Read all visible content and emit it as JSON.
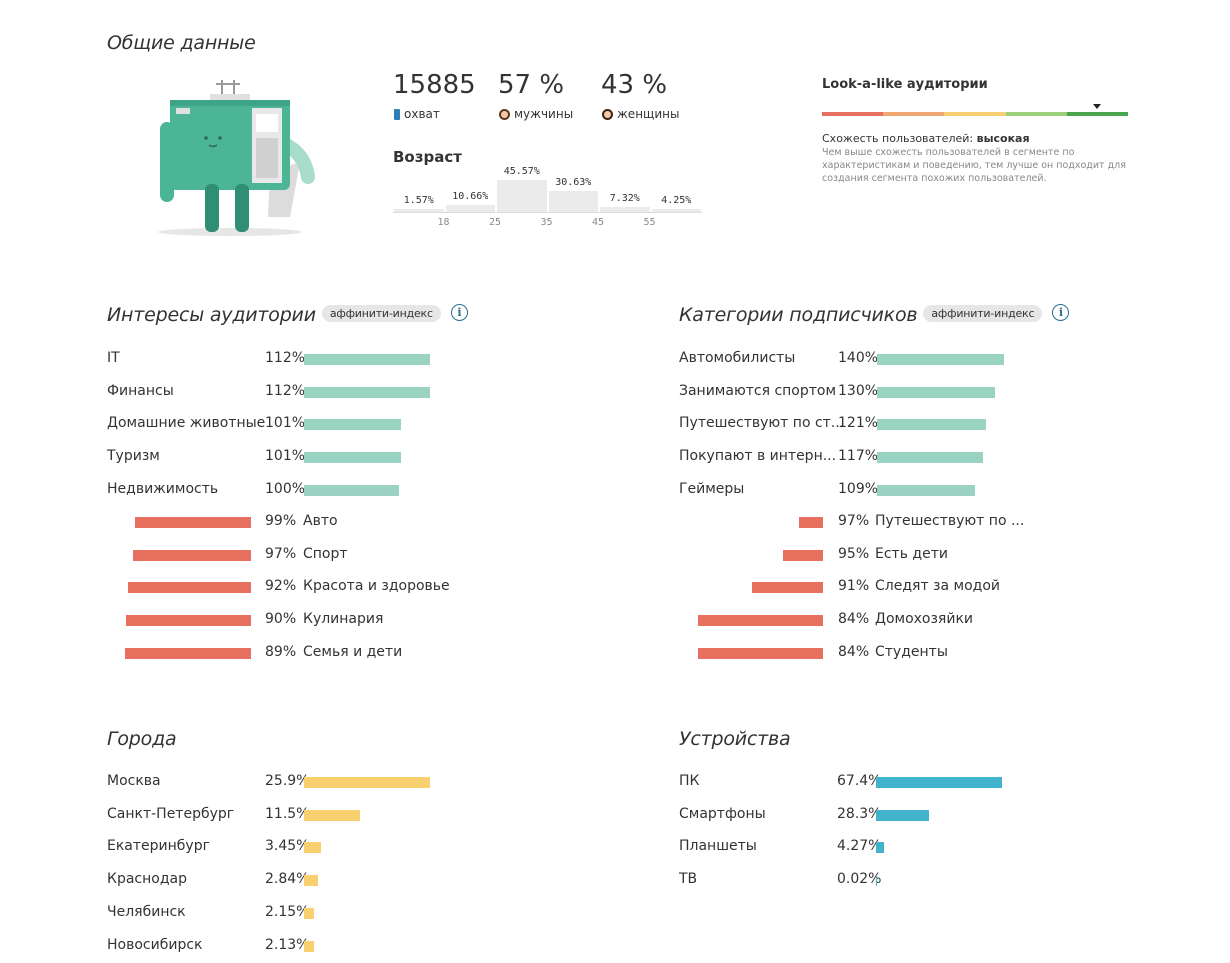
{
  "overview": {
    "title": "Общие данные",
    "reach": {
      "value": "15885",
      "label": "охват"
    },
    "men": {
      "value": "57 %",
      "label": "мужчины"
    },
    "women": {
      "value": "43 %",
      "label": "женщины"
    },
    "age": {
      "title": "Возраст",
      "groups": [
        {
          "value": "1.57%",
          "pct": 1.57
        },
        {
          "value": "10.66%",
          "pct": 10.66
        },
        {
          "value": "45.57%",
          "pct": 45.57
        },
        {
          "value": "30.63%",
          "pct": 30.63
        },
        {
          "value": "7.32%",
          "pct": 7.32
        },
        {
          "value": "4.25%",
          "pct": 4.25
        }
      ],
      "ticks": [
        "18",
        "25",
        "35",
        "45",
        "55"
      ]
    },
    "lookalike": {
      "title": "Look-a-like аудитории",
      "scale_colors": [
        "#e8705f",
        "#f0a873",
        "#f7cf74",
        "#9bcf79",
        "#4aa64e"
      ],
      "marker_position": 0.9,
      "similarity_label": "Схожесть пользователей:",
      "similarity_value": "высокая",
      "description": "Чем выше схожесть пользователей в сегменте по характеристикам и поведению, тем лучше он подходит для создания сегмента похожих пользователей."
    }
  },
  "interests": {
    "title": "Интересы аудитории",
    "badge": "аффинити-индекс",
    "top": [
      {
        "label": "IT",
        "value": "112%",
        "pct": 112
      },
      {
        "label": "Финансы",
        "value": "112%",
        "pct": 112
      },
      {
        "label": "Домашние животные",
        "value": "101%",
        "pct": 101
      },
      {
        "label": "Туризм",
        "value": "101%",
        "pct": 101
      },
      {
        "label": "Недвижимость",
        "value": "100%",
        "pct": 100
      }
    ],
    "bottom": [
      {
        "label": "Авто",
        "value": "99%",
        "pct": 99
      },
      {
        "label": "Спорт",
        "value": "97%",
        "pct": 97
      },
      {
        "label": "Красота и здоровье",
        "value": "92%",
        "pct": 92
      },
      {
        "label": "Кулинария",
        "value": "90%",
        "pct": 90
      },
      {
        "label": "Семья и дети",
        "value": "89%",
        "pct": 89
      }
    ]
  },
  "categories": {
    "title": "Категории подписчиков",
    "badge": "аффинити-индекс",
    "top": [
      {
        "label": "Автомобилисты",
        "value": "140%",
        "pct": 140
      },
      {
        "label": "Занимаются спортом",
        "value": "130%",
        "pct": 130
      },
      {
        "label": "Путешествуют по ст...",
        "value": "121%",
        "pct": 121
      },
      {
        "label": "Покупают в интерн...",
        "value": "117%",
        "pct": 117
      },
      {
        "label": "Геймеры",
        "value": "109%",
        "pct": 109
      }
    ],
    "bottom": [
      {
        "label": "Путешествуют по ...",
        "value": "97%",
        "pct": 97
      },
      {
        "label": "Есть дети",
        "value": "95%",
        "pct": 95
      },
      {
        "label": "Следят за модой",
        "value": "91%",
        "pct": 91
      },
      {
        "label": "Домохозяйки",
        "value": "84%",
        "pct": 84
      },
      {
        "label": "Студенты",
        "value": "84%",
        "pct": 84
      }
    ]
  },
  "cities": {
    "title": "Города",
    "items": [
      {
        "label": "Москва",
        "value": "25.9%",
        "pct": 25.9
      },
      {
        "label": "Санкт-Петербург",
        "value": "11.5%",
        "pct": 11.5
      },
      {
        "label": "Екатеринбург",
        "value": "3.45%",
        "pct": 3.45
      },
      {
        "label": "Краснодар",
        "value": "2.84%",
        "pct": 2.84
      },
      {
        "label": "Челябинск",
        "value": "2.15%",
        "pct": 2.15
      },
      {
        "label": "Новосибирск",
        "value": "2.13%",
        "pct": 2.13
      }
    ]
  },
  "devices": {
    "title": "Устройства",
    "items": [
      {
        "label": "ПК",
        "value": "67.4%",
        "pct": 67.4
      },
      {
        "label": "Смартфоны",
        "value": "28.3%",
        "pct": 28.3
      },
      {
        "label": "Планшеты",
        "value": "4.27%",
        "pct": 4.27
      },
      {
        "label": "ТВ",
        "value": "0.02%",
        "pct": 0.02
      }
    ]
  },
  "colors": {
    "positive": "#9bd3c3",
    "negative": "#e8705f",
    "cities": "#f9d06f",
    "devices": "#42b3cc",
    "mascot": "#4bb596"
  }
}
